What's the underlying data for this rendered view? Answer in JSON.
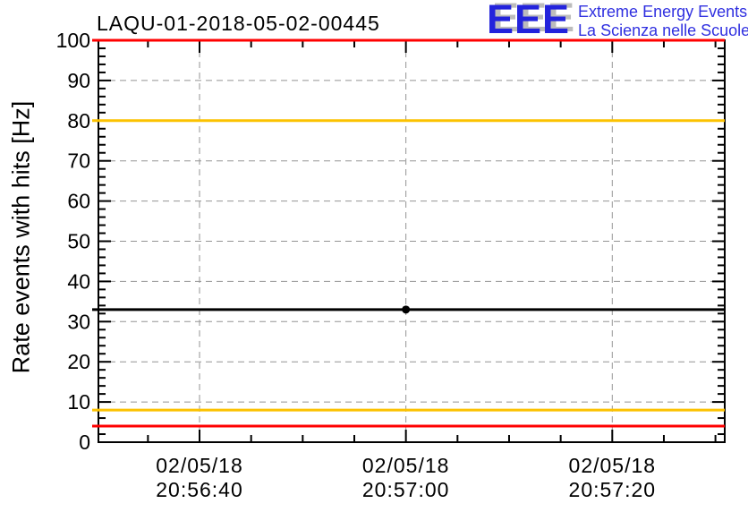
{
  "header": {
    "title": "LAQU-01-2018-05-02-00445",
    "logo": {
      "acronym": "EEE",
      "tagline_line1": "Extreme Energy Events",
      "tagline_line2": "La Scienza nelle Scuole",
      "blue": "#2323dc",
      "shadow_gray": "#bcbcbc"
    }
  },
  "chart_data": {
    "type": "scatter",
    "title": "LAQU-01-2018-05-02-00445",
    "ylabel": "Rate events with hits [Hz]",
    "xlabel": "",
    "ylim": [
      0,
      100
    ],
    "y_major_tick_step": 10,
    "y_minor_divisions": 5,
    "y_tick_labels": [
      "0",
      "10",
      "20",
      "30",
      "40",
      "50",
      "60",
      "70",
      "80",
      "90",
      "100"
    ],
    "x_axis": {
      "range_seconds": [
        -9.8,
        50.9
      ],
      "minor_tick_step_seconds": 5,
      "major_tick_step_seconds": 20,
      "major_ticks": [
        {
          "t": 0,
          "date": "02/05/18",
          "time": "20:56:40"
        },
        {
          "t": 20,
          "date": "02/05/18",
          "time": "20:57:00"
        },
        {
          "t": 40,
          "date": "02/05/18",
          "time": "20:57:20"
        }
      ]
    },
    "grid": {
      "show": true,
      "style": "dashed",
      "color": "#949494"
    },
    "reference_lines": [
      {
        "role": "upper-alarm",
        "value": 100,
        "color": "#ff0000"
      },
      {
        "role": "upper-warning",
        "value": 80,
        "color": "#fcc200"
      },
      {
        "role": "mean",
        "value": 33,
        "color": "#000000"
      },
      {
        "role": "lower-warning",
        "value": 8,
        "color": "#fcc200"
      },
      {
        "role": "lower-alarm",
        "value": 4,
        "color": "#ff0000"
      }
    ],
    "points": [
      {
        "t": 20,
        "date": "02/05/18",
        "time": "20:57:00",
        "value": 33,
        "marker": "filled-circle",
        "color": "#000000"
      }
    ]
  }
}
